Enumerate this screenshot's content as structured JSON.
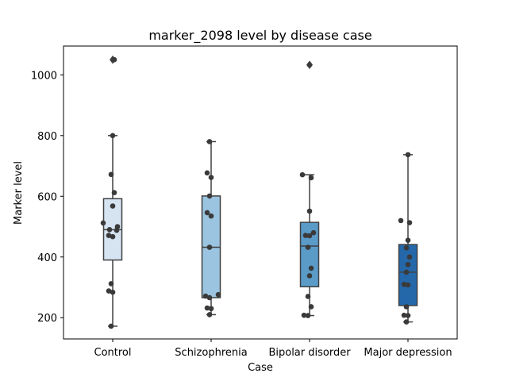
{
  "chart_data": {
    "type": "box",
    "title": "marker_2098 level by disease case",
    "xlabel": "Case",
    "ylabel": "Marker level",
    "ylim": [
      130,
      1095
    ],
    "yticks": [
      200,
      400,
      600,
      800,
      1000
    ],
    "grid": false,
    "categories": [
      "Control",
      "Schizophrenia",
      "Bipolar disorder",
      "Major depression"
    ],
    "colors": [
      "#d6e4f2",
      "#9ac4df",
      "#5a9bc8",
      "#2468aa"
    ],
    "boxes": [
      {
        "category": "Control",
        "whisker_low": 172,
        "q1": 390,
        "median": 490,
        "q3": 592,
        "whisker_high": 800,
        "outliers": [
          1050
        ]
      },
      {
        "category": "Schizophrenia",
        "whisker_low": 210,
        "q1": 266,
        "median": 432,
        "q3": 601,
        "whisker_high": 780,
        "outliers": []
      },
      {
        "category": "Bipolar disorder",
        "whisker_low": 207,
        "q1": 302,
        "median": 436,
        "q3": 514,
        "whisker_high": 671,
        "outliers": [
          1033
        ]
      },
      {
        "category": "Major depression",
        "whisker_low": 186,
        "q1": 240,
        "median": 350,
        "q3": 441,
        "whisker_high": 737,
        "outliers": []
      }
    ],
    "points": [
      [
        172,
        284,
        288,
        312,
        467,
        471,
        488,
        490,
        500,
        512,
        568,
        612,
        672,
        800,
        1050
      ],
      [
        210,
        230,
        232,
        266,
        271,
        276,
        432,
        535,
        546,
        601,
        662,
        677,
        780
      ],
      [
        207,
        208,
        236,
        270,
        338,
        363,
        432,
        470,
        471,
        480,
        551,
        661,
        671,
        1033
      ],
      [
        186,
        207,
        208,
        236,
        308,
        310,
        350,
        375,
        400,
        430,
        455,
        513,
        520,
        737
      ]
    ]
  }
}
